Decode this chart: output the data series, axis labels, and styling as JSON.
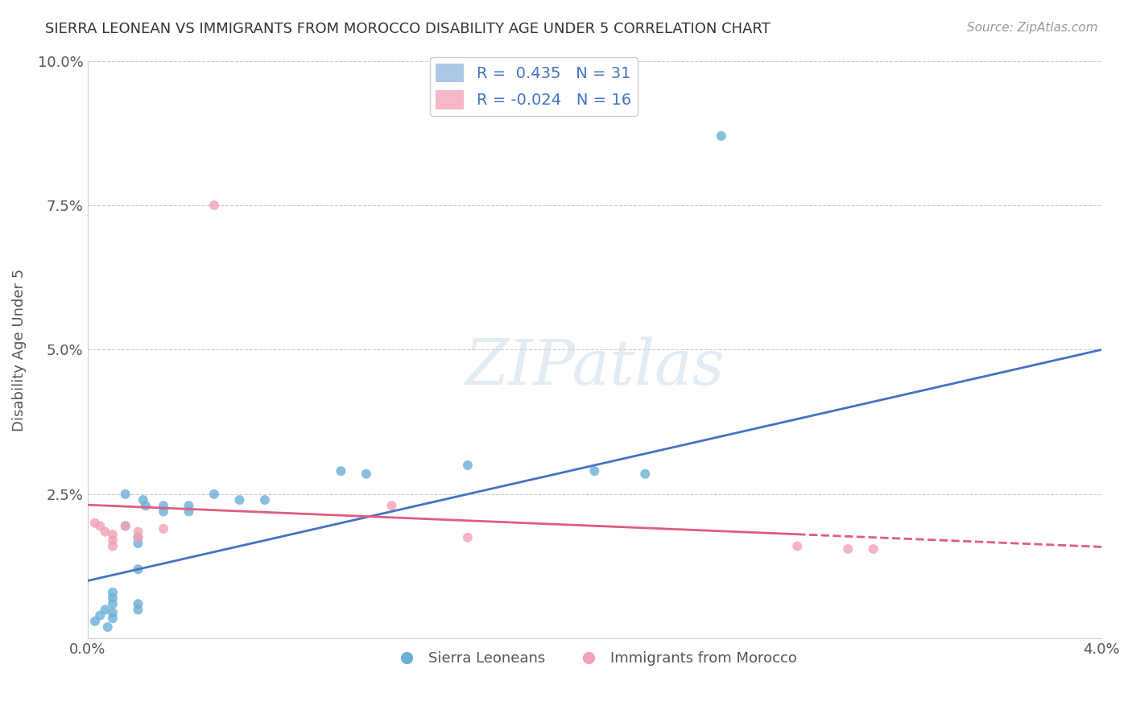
{
  "title": "SIERRA LEONEAN VS IMMIGRANTS FROM MOROCCO DISABILITY AGE UNDER 5 CORRELATION CHART",
  "source": "Source: ZipAtlas.com",
  "ylabel": "Disability Age Under 5",
  "xlim": [
    0.0,
    0.04
  ],
  "ylim": [
    0.0,
    0.1
  ],
  "sl_color": "#6baed6",
  "sl_line_color": "#4472c4",
  "mo_color": "#f4a0b5",
  "mo_line_color": "#e05c80",
  "watermark_text": "ZIPatlas",
  "background_color": "#ffffff",
  "grid_color": "#cccccc",
  "sl_R": "0.435",
  "sl_N": "31",
  "mo_R": "-0.024",
  "mo_N": "16",
  "sl_points": [
    [
      0.0003,
      0.003
    ],
    [
      0.0005,
      0.004
    ],
    [
      0.0007,
      0.005
    ],
    [
      0.0008,
      0.002
    ],
    [
      0.001,
      0.008
    ],
    [
      0.001,
      0.007
    ],
    [
      0.001,
      0.006
    ],
    [
      0.001,
      0.0045
    ],
    [
      0.001,
      0.0035
    ],
    [
      0.0015,
      0.025
    ],
    [
      0.0015,
      0.0195
    ],
    [
      0.002,
      0.0175
    ],
    [
      0.002,
      0.0165
    ],
    [
      0.002,
      0.012
    ],
    [
      0.002,
      0.006
    ],
    [
      0.002,
      0.005
    ],
    [
      0.0022,
      0.024
    ],
    [
      0.0023,
      0.023
    ],
    [
      0.003,
      0.023
    ],
    [
      0.003,
      0.022
    ],
    [
      0.004,
      0.023
    ],
    [
      0.004,
      0.022
    ],
    [
      0.005,
      0.025
    ],
    [
      0.006,
      0.024
    ],
    [
      0.007,
      0.024
    ],
    [
      0.025,
      0.087
    ],
    [
      0.01,
      0.029
    ],
    [
      0.011,
      0.0285
    ],
    [
      0.015,
      0.03
    ],
    [
      0.02,
      0.029
    ],
    [
      0.022,
      0.0285
    ]
  ],
  "mo_points": [
    [
      0.0003,
      0.02
    ],
    [
      0.0005,
      0.0195
    ],
    [
      0.0007,
      0.0185
    ],
    [
      0.001,
      0.018
    ],
    [
      0.001,
      0.017
    ],
    [
      0.001,
      0.016
    ],
    [
      0.0015,
      0.0195
    ],
    [
      0.002,
      0.0185
    ],
    [
      0.002,
      0.0175
    ],
    [
      0.003,
      0.019
    ],
    [
      0.005,
      0.075
    ],
    [
      0.012,
      0.023
    ],
    [
      0.015,
      0.0175
    ],
    [
      0.028,
      0.016
    ],
    [
      0.03,
      0.0155
    ],
    [
      0.031,
      0.0155
    ]
  ],
  "sl_line_x": [
    0.0,
    0.04
  ],
  "sl_line_y": [
    0.01,
    0.05
  ],
  "mo_solid_line_x": [
    0.0,
    0.028
  ],
  "mo_solid_line_y": [
    0.022,
    0.02
  ],
  "mo_dashed_line_x": [
    0.028,
    0.04
  ],
  "mo_dashed_line_y": [
    0.02,
    0.019
  ]
}
